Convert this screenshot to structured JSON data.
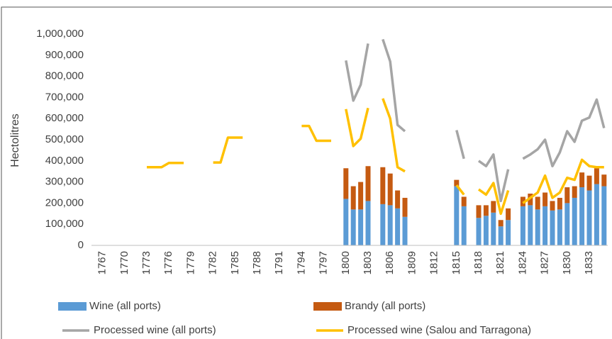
{
  "chart_data": {
    "type": "combo",
    "y_label": "Hectolitres",
    "x": [
      1767,
      1768,
      1769,
      1770,
      1771,
      1772,
      1773,
      1774,
      1775,
      1776,
      1777,
      1778,
      1779,
      1780,
      1781,
      1782,
      1783,
      1784,
      1785,
      1786,
      1787,
      1788,
      1789,
      1790,
      1791,
      1792,
      1793,
      1794,
      1795,
      1796,
      1797,
      1798,
      1799,
      1800,
      1801,
      1802,
      1803,
      1804,
      1805,
      1806,
      1807,
      1808,
      1809,
      1810,
      1811,
      1812,
      1813,
      1814,
      1815,
      1816,
      1817,
      1818,
      1819,
      1820,
      1821,
      1822,
      1823,
      1824,
      1825,
      1826,
      1827,
      1828,
      1829,
      1830,
      1831,
      1832,
      1833,
      1834,
      1835
    ],
    "xlim": [
      1765.5,
      1835.5
    ],
    "xticks": [
      1767,
      1770,
      1773,
      1776,
      1779,
      1782,
      1785,
      1788,
      1791,
      1794,
      1797,
      1800,
      1803,
      1806,
      1809,
      1812,
      1815,
      1818,
      1821,
      1824,
      1827,
      1830,
      1833
    ],
    "ylim": [
      0,
      1000000
    ],
    "yticks": [
      0,
      {
        "value": 100000,
        "label": "100,000"
      },
      {
        "value": 200000,
        "label": "200,000"
      },
      {
        "value": 300000,
        "label": "300,000"
      },
      {
        "value": 400000,
        "label": "400,000"
      },
      {
        "value": 500000,
        "label": "500,000"
      },
      {
        "value": 600000,
        "label": "600,000"
      },
      {
        "value": 700000,
        "label": "700,000"
      },
      {
        "value": 800000,
        "label": "800,000"
      },
      {
        "value": 900000,
        "label": "900,000"
      },
      {
        "value": 1000000,
        "label": "1,000,000"
      }
    ],
    "grid": false,
    "stacked": true,
    "series": [
      {
        "name": "Wine (all ports)",
        "type": "bar",
        "color": "#5b9bd5",
        "values": [
          null,
          null,
          null,
          null,
          null,
          null,
          null,
          null,
          null,
          null,
          null,
          null,
          null,
          null,
          null,
          null,
          null,
          null,
          null,
          null,
          null,
          null,
          null,
          null,
          null,
          null,
          null,
          null,
          null,
          null,
          null,
          null,
          null,
          220000,
          170000,
          170000,
          210000,
          null,
          195000,
          190000,
          175000,
          135000,
          null,
          null,
          null,
          null,
          null,
          null,
          280000,
          185000,
          null,
          130000,
          140000,
          155000,
          90000,
          120000,
          null,
          185000,
          190000,
          170000,
          185000,
          165000,
          170000,
          200000,
          225000,
          275000,
          260000,
          290000,
          280000
        ]
      },
      {
        "name": "Brandy (all ports)",
        "type": "bar",
        "color": "#c55a11",
        "values": [
          null,
          null,
          null,
          null,
          null,
          null,
          null,
          null,
          null,
          null,
          null,
          null,
          null,
          null,
          null,
          null,
          null,
          null,
          null,
          null,
          null,
          null,
          null,
          null,
          null,
          null,
          null,
          null,
          null,
          null,
          null,
          null,
          null,
          145000,
          110000,
          130000,
          165000,
          null,
          175000,
          150000,
          85000,
          90000,
          null,
          null,
          null,
          null,
          null,
          null,
          30000,
          45000,
          null,
          60000,
          50000,
          55000,
          30000,
          55000,
          null,
          45000,
          55000,
          60000,
          65000,
          45000,
          55000,
          75000,
          55000,
          70000,
          70000,
          75000,
          55000
        ]
      },
      {
        "name": "Processed wine (all ports)",
        "type": "line",
        "color": "#a5a5a5",
        "values": [
          null,
          null,
          null,
          null,
          null,
          null,
          null,
          null,
          null,
          null,
          null,
          null,
          null,
          null,
          null,
          null,
          null,
          null,
          null,
          null,
          null,
          null,
          null,
          null,
          null,
          null,
          null,
          null,
          null,
          null,
          null,
          null,
          null,
          875000,
          685000,
          760000,
          955000,
          null,
          975000,
          870000,
          570000,
          540000,
          null,
          null,
          null,
          null,
          null,
          null,
          545000,
          410000,
          null,
          400000,
          375000,
          430000,
          210000,
          360000,
          null,
          410000,
          430000,
          455000,
          500000,
          375000,
          440000,
          540000,
          490000,
          590000,
          605000,
          690000,
          555000
        ]
      },
      {
        "name": "Processed wine (Salou and Tarragona)",
        "type": "line",
        "color": "#ffc000",
        "values": [
          null,
          null,
          null,
          null,
          null,
          null,
          370000,
          370000,
          370000,
          390000,
          390000,
          390000,
          null,
          null,
          null,
          392000,
          392000,
          510000,
          510000,
          510000,
          null,
          null,
          null,
          null,
          null,
          null,
          null,
          565000,
          565000,
          495000,
          495000,
          495000,
          null,
          645000,
          470000,
          505000,
          650000,
          null,
          695000,
          600000,
          370000,
          350000,
          null,
          null,
          null,
          null,
          null,
          null,
          285000,
          240000,
          null,
          265000,
          240000,
          295000,
          150000,
          260000,
          null,
          200000,
          225000,
          250000,
          330000,
          225000,
          250000,
          320000,
          310000,
          405000,
          375000,
          370000,
          370000
        ]
      }
    ]
  }
}
